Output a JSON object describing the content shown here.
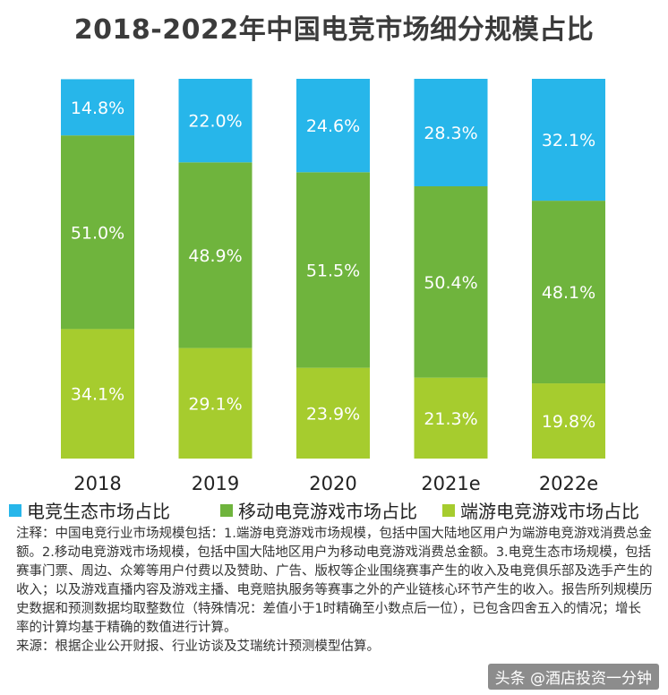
{
  "chart_data": {
    "type": "bar",
    "stacked": true,
    "title": "2018-2022年中国电竞市场细分规模占比",
    "categories": [
      "2018",
      "2019",
      "2020",
      "2021e",
      "2022e"
    ],
    "series": [
      {
        "name": "端游电竞游戏市场占比",
        "values": [
          34.1,
          29.1,
          23.9,
          21.3,
          19.8
        ],
        "labels": [
          "34.1%",
          "29.1%",
          "23.9%",
          "21.3%",
          "19.8%"
        ],
        "color": "#a6cc2e"
      },
      {
        "name": "移动电竞游戏市场占比",
        "values": [
          51.0,
          48.9,
          51.5,
          50.4,
          48.1
        ],
        "labels": [
          "51.0%",
          "48.9%",
          "51.5%",
          "50.4%",
          "48.1%"
        ],
        "color": "#6fb43d"
      },
      {
        "name": "电竞生态市场占比",
        "values": [
          14.8,
          22.0,
          24.6,
          28.3,
          32.1
        ],
        "labels": [
          "14.8%",
          "22.0%",
          "24.6%",
          "28.3%",
          "32.1%"
        ],
        "color": "#27b6ea"
      }
    ],
    "ylim": [
      0,
      100
    ],
    "legend_position": "bottom",
    "grid": false
  },
  "notes": {
    "line1": "注释：中国电竞行业市场规模包括：1.端游电竞游戏市场规模，包括中国大陆地区用户为端游电竞游戏消费总金额。2.移动电竞游戏市场规模，包括中国大陆地区用户为移动电竞游戏消费总金额。3.电竞生态市场规模，包括赛事门票、周边、众筹等用户付费以及赞助、广告、版权等企业围绕赛事产生的收入及电竞俱乐部及选手产生的收入；以及游戏直播内容及游戏主播、电竞赔执服务等赛事之外的产业链核心环节产生的收入。报告所列规模历史数据和预测数据均取整数位（特殊情况：差值小于1时精确至小数点后一位），已包含四舍五入的情况；增长率的计算均基于精确的数值进行计算。",
    "line2": "来源：根据企业公开财报、行业访谈及艾瑞统计预测模型估算。"
  },
  "watermark": "头条 @酒店投资一分钟",
  "colors": {
    "title": "#3b3b3b",
    "background": "#ffffff"
  }
}
